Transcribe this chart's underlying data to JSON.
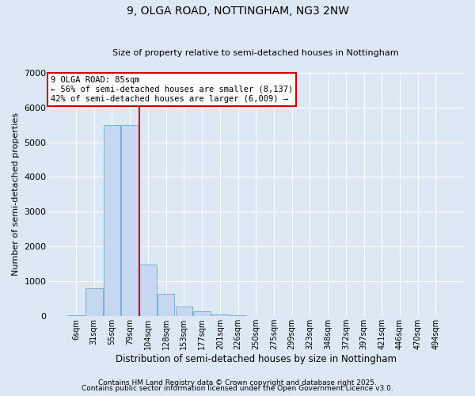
{
  "title": "9, OLGA ROAD, NOTTINGHAM, NG3 2NW",
  "subtitle": "Size of property relative to semi-detached houses in Nottingham",
  "xlabel": "Distribution of semi-detached houses by size in Nottingham",
  "ylabel": "Number of semi-detached properties",
  "bar_labels": [
    "6sqm",
    "31sqm",
    "55sqm",
    "79sqm",
    "104sqm",
    "128sqm",
    "153sqm",
    "177sqm",
    "201sqm",
    "226sqm",
    "250sqm",
    "275sqm",
    "299sqm",
    "323sqm",
    "348sqm",
    "372sqm",
    "397sqm",
    "421sqm",
    "446sqm",
    "470sqm",
    "494sqm"
  ],
  "bar_values": [
    20,
    800,
    5500,
    5500,
    1480,
    650,
    270,
    140,
    60,
    30,
    10,
    0,
    0,
    0,
    0,
    0,
    0,
    0,
    0,
    0,
    0
  ],
  "bar_color": "#c5d8f0",
  "bar_edge_color": "#7bafd4",
  "background_color": "#dce9f5",
  "vline_x": 3.5,
  "vline_color": "#cc0000",
  "annotation_title": "9 OLGA ROAD: 85sqm",
  "annotation_line1": "← 56% of semi-detached houses are smaller (8,137)",
  "annotation_line2": "42% of semi-detached houses are larger (6,009) →",
  "annotation_box_color": "#ffffff",
  "annotation_box_edge": "#cc0000",
  "ylim": [
    0,
    7000
  ],
  "yticks": [
    0,
    1000,
    2000,
    3000,
    4000,
    5000,
    6000,
    7000
  ],
  "footer1": "Contains HM Land Registry data © Crown copyright and database right 2025.",
  "footer2": "Contains public sector information licensed under the Open Government Licence v3.0."
}
